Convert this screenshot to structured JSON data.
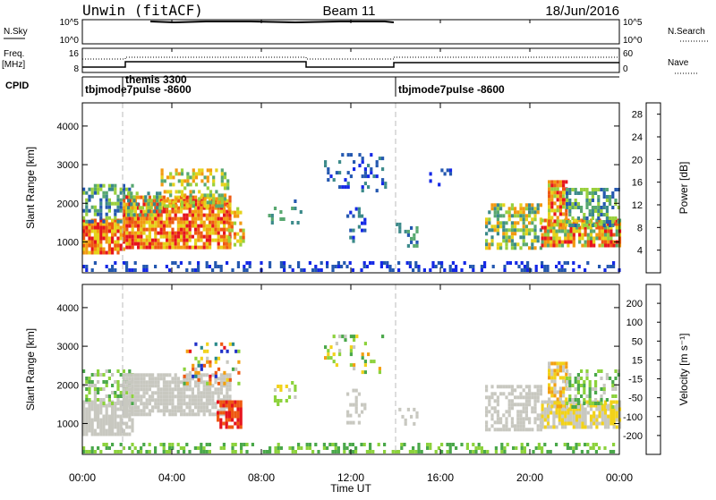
{
  "header": {
    "station": "Unwin (fitACF)",
    "beam": "Beam 11",
    "date": "18/Jun/2016"
  },
  "top_panels": {
    "nsky_label": "N.Sky",
    "nsky_ticks": [
      "10^5",
      "10^0"
    ],
    "nsearch_label": "N.Search",
    "nsearch_ticks": [
      "10^5",
      "10^0"
    ],
    "freq_label_line1": "Freq.",
    "freq_label_line2": "[MHz]",
    "freq_ticks": [
      "16",
      "8"
    ],
    "nave_label": "Nave",
    "nave_ticks": [
      "60",
      "0"
    ],
    "cpid_label": "CPID",
    "cpid_segments": [
      {
        "label": "tbjmode7pulse -8600",
        "start_h": 0,
        "end_h": 14
      },
      {
        "label": "themis 3300",
        "start_h": 1.8,
        "end_h": 14
      },
      {
        "label": "tbjmode7pulse -8600",
        "start_h": 14,
        "end_h": 24
      }
    ]
  },
  "x_axis": {
    "label": "Time UT",
    "ticks": [
      "00:00",
      "04:00",
      "08:00",
      "12:00",
      "16:00",
      "20:00",
      "00:00"
    ]
  },
  "chart_data": [
    {
      "type": "heatmap",
      "name": "power",
      "ylabel": "Slant Range [km]",
      "yticks": [
        1000,
        2000,
        3000,
        4000
      ],
      "ylim": [
        200,
        4600
      ],
      "xlim": [
        0,
        24
      ],
      "colorbar_label": "Power [dB]",
      "colorbar_ticks": [
        4,
        8,
        12,
        16,
        20,
        24,
        28
      ],
      "colorbar_range": [
        0,
        30
      ],
      "colors": [
        "#1428e6",
        "#2458b0",
        "#3c8a8a",
        "#58a870",
        "#9ad03c",
        "#e6d21a",
        "#f29a12",
        "#ee5a12",
        "#e6141e"
      ]
    },
    {
      "type": "heatmap",
      "name": "velocity",
      "ylabel": "Slant Range [km]",
      "yticks": [
        1000,
        2000,
        3000,
        4000
      ],
      "ylim": [
        200,
        4600
      ],
      "xlim": [
        0,
        24
      ],
      "colorbar_label": "Velocity [m s⁻¹]",
      "colorbar_ticks": [
        200,
        100,
        50,
        15,
        -15,
        -50,
        -100,
        -200
      ],
      "colors": [
        "#2030c8",
        "#2a8a8a",
        "#4aa84a",
        "#8cd23c",
        "#c8c8c0",
        "#f2d21a",
        "#f2a012",
        "#ee5a12",
        "#e6141e"
      ]
    }
  ]
}
